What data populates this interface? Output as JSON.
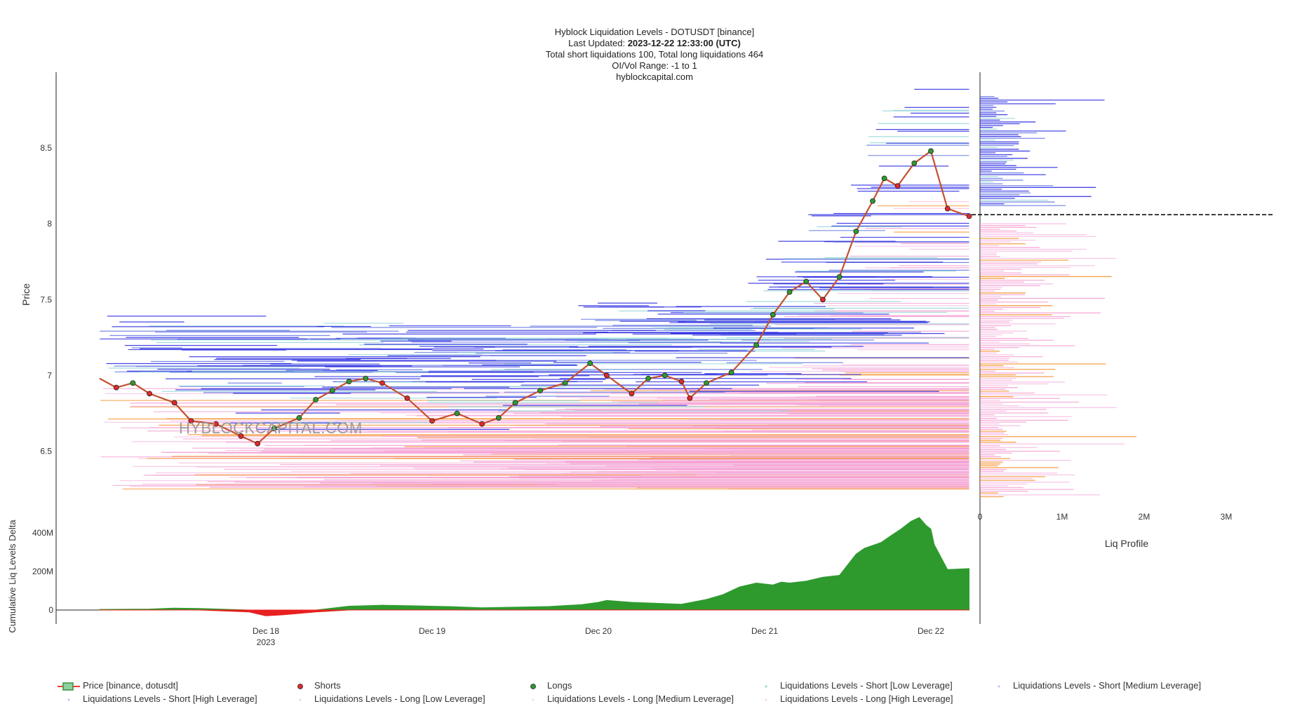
{
  "header": {
    "line1": "Hyblock Liquidation Levels - DOTUSDT [binance]",
    "line2_label": "Last Updated: ",
    "line2_value": "2023-12-22 12:33:00 (UTC)",
    "line3": "Total short liquidations 100, Total long liquidations 464",
    "line4": "OI/Vol Range: -1 to 1",
    "line5": "hyblockcapital.com"
  },
  "watermark": "HYBLOCKCAPITAL.COM",
  "colors": {
    "price_up": "#3a8f3a",
    "price_down": "#e8402d",
    "short_dot": "#e02a2a",
    "long_dot": "#2e9a2e",
    "short_low": "#8fd3d6",
    "short_medium": "#5b6fe0",
    "short_high": "#1a1ae0",
    "long_low": "#f7b7e0",
    "long_medium": "#f49acf",
    "long_high": "#f58a1f",
    "delta_pos": "#2e9a2e",
    "delta_neg": "#e82020"
  },
  "chart_data": [
    {
      "type": "line",
      "name": "main",
      "ylabel": "Price",
      "yticks": [
        6.5,
        7,
        7.5,
        8,
        8.5
      ],
      "ylim": [
        6.1,
        9.0
      ],
      "x_start": "2023-12-17 12:00",
      "x_end": "2023-12-22 12:33",
      "xticks": [
        "Dec 18",
        "Dec 19",
        "Dec 20",
        "Dec 21",
        "Dec 22"
      ],
      "xtick_sub": "2023",
      "price_series": {
        "name": "Price [binance, dotusdt]",
        "times": [
          0,
          0.1,
          0.2,
          0.3,
          0.45,
          0.55,
          0.7,
          0.85,
          0.95,
          1.05,
          1.2,
          1.3,
          1.4,
          1.5,
          1.6,
          1.7,
          1.85,
          2.0,
          2.15,
          2.3,
          2.4,
          2.5,
          2.65,
          2.8,
          2.95,
          3.05,
          3.2,
          3.3,
          3.4,
          3.5,
          3.55,
          3.65,
          3.8,
          3.95,
          4.05,
          4.15,
          4.25,
          4.35,
          4.45,
          4.55,
          4.65,
          4.72,
          4.8,
          4.9,
          5.0,
          5.1,
          5.23
        ],
        "values": [
          6.98,
          6.92,
          6.95,
          6.88,
          6.82,
          6.7,
          6.68,
          6.6,
          6.55,
          6.65,
          6.72,
          6.84,
          6.9,
          6.96,
          6.98,
          6.95,
          6.85,
          6.7,
          6.75,
          6.68,
          6.72,
          6.82,
          6.9,
          6.95,
          7.08,
          7.0,
          6.88,
          6.98,
          7.0,
          6.96,
          6.85,
          6.95,
          7.02,
          7.2,
          7.4,
          7.55,
          7.62,
          7.5,
          7.65,
          7.95,
          8.15,
          8.3,
          8.25,
          8.4,
          8.48,
          8.1,
          8.05
        ]
      },
      "profile_axis": {
        "label": "Liq Profile",
        "ticks": [
          "0",
          "1M",
          "2M",
          "3M"
        ],
        "tick_values": [
          0,
          1000000,
          2000000,
          3000000
        ],
        "current_price_line": 8.06
      }
    },
    {
      "type": "area",
      "name": "delta",
      "ylabel": "Cumulative Liq Levels Delta",
      "yticks": [
        "0",
        "200M",
        "400M"
      ],
      "ytick_values": [
        0,
        200000000,
        400000000
      ],
      "times": [
        0,
        0.3,
        0.45,
        0.6,
        0.9,
        1.0,
        1.1,
        1.3,
        1.5,
        1.7,
        1.9,
        2.1,
        2.3,
        2.5,
        2.7,
        2.9,
        3.0,
        3.05,
        3.2,
        3.5,
        3.65,
        3.75,
        3.85,
        3.95,
        4.05,
        4.1,
        4.15,
        4.25,
        4.35,
        4.45,
        4.55,
        4.6,
        4.7,
        4.75,
        4.82,
        4.88,
        4.93,
        4.97,
        5.0,
        5.02,
        5.1,
        5.23
      ],
      "values": [
        3,
        5,
        10,
        8,
        -10,
        -30,
        -25,
        -10,
        20,
        25,
        22,
        18,
        12,
        15,
        18,
        28,
        40,
        50,
        40,
        30,
        55,
        80,
        120,
        140,
        130,
        145,
        140,
        150,
        170,
        180,
        290,
        320,
        350,
        380,
        420,
        460,
        480,
        440,
        420,
        340,
        210,
        215
      ]
    }
  ],
  "legend": [
    {
      "id": "price",
      "label": "Price [binance, dotusdt]"
    },
    {
      "id": "shorts",
      "label": "Shorts"
    },
    {
      "id": "longs",
      "label": "Longs"
    },
    {
      "id": "short_low",
      "label": "Liquidations Levels - Short [Low Leverage]"
    },
    {
      "id": "short_medium",
      "label": "Liquidations Levels - Short [Medium Leverage]"
    },
    {
      "id": "short_high",
      "label": "Liquidations Levels - Short [High Leverage]"
    },
    {
      "id": "long_low",
      "label": "Liquidations Levels - Long [Low Leverage]"
    },
    {
      "id": "long_medium",
      "label": "Liquidations Levels - Long [Medium Leverage]"
    },
    {
      "id": "long_high",
      "label": "Liquidations Levels - Long [High Leverage]"
    }
  ]
}
